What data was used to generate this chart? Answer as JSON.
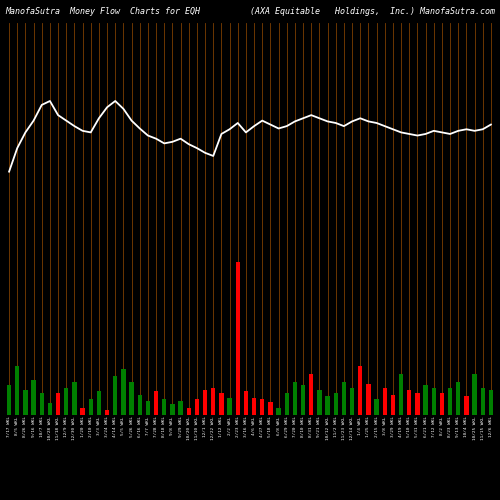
{
  "title_left": "ManofaSutra  Money Flow  Charts for EQH",
  "title_right": "(AXA Equitable   Holdings,  Inc.) ManofaSutra.com",
  "background_color": "#000000",
  "bar_colors": [
    "green",
    "green",
    "green",
    "green",
    "green",
    "green",
    "red",
    "green",
    "green",
    "red",
    "green",
    "green",
    "red",
    "green",
    "green",
    "green",
    "green",
    "green",
    "red",
    "green",
    "green",
    "green",
    "red",
    "red",
    "red",
    "red",
    "red",
    "green",
    "red",
    "red",
    "red",
    "red",
    "red",
    "green",
    "green",
    "green",
    "green",
    "red",
    "green",
    "green",
    "green",
    "green",
    "green",
    "red",
    "red",
    "green",
    "red",
    "red",
    "green",
    "red",
    "red",
    "green",
    "green",
    "red",
    "green",
    "green",
    "red",
    "green",
    "green",
    "green"
  ],
  "bar_heights": [
    38,
    62,
    32,
    44,
    28,
    15,
    28,
    35,
    42,
    9,
    20,
    30,
    6,
    50,
    58,
    42,
    25,
    18,
    30,
    20,
    14,
    18,
    9,
    20,
    32,
    35,
    28,
    22,
    195,
    30,
    22,
    20,
    16,
    9,
    28,
    42,
    38,
    52,
    32,
    24,
    28,
    42,
    35,
    62,
    40,
    20,
    35,
    25,
    52,
    32,
    28,
    38,
    35,
    28,
    35,
    42,
    24,
    52,
    35,
    32
  ],
  "line_values": [
    310,
    340,
    360,
    375,
    395,
    400,
    382,
    375,
    368,
    362,
    360,
    378,
    392,
    400,
    390,
    375,
    365,
    356,
    352,
    346,
    348,
    352,
    345,
    340,
    334,
    330,
    358,
    364,
    372,
    360,
    368,
    375,
    370,
    365,
    368,
    374,
    378,
    382,
    378,
    374,
    372,
    368,
    374,
    378,
    374,
    372,
    368,
    364,
    360,
    358,
    356,
    358,
    362,
    360,
    358,
    362,
    364,
    362,
    364,
    370
  ],
  "tick_labels": [
    "7/17 WKL",
    "8/5 WKL",
    "8/26 WKL",
    "9/16 WKL",
    "10/7 WKL",
    "10/28 WKL",
    "11/18 WKL",
    "12/9 WKL",
    "12/30 WKL",
    "1/20 WKL",
    "2/10 WKL",
    "3/3 WKL",
    "3/24 WKL",
    "4/14 WKL",
    "5/5 WKL",
    "5/26 WKL",
    "6/16 WKL",
    "7/7 WKL",
    "7/28 WKL",
    "8/18 WKL",
    "9/8 WKL",
    "9/29 WKL",
    "10/20 WKL",
    "11/10 WKL",
    "12/1 WKL",
    "12/22 WKL",
    "1/12 WKL",
    "2/2 WKL",
    "2/23 WKL",
    "3/16 WKL",
    "4/6 WKL",
    "4/27 WKL",
    "5/18 WKL",
    "6/8 WKL",
    "6/29 WKL",
    "7/20 WKL",
    "8/10 WKL",
    "8/31 WKL",
    "9/21 WKL",
    "10/12 WKL",
    "11/2 WKL",
    "11/23 WKL",
    "12/14 WKL",
    "1/4 WKL",
    "1/25 WKL",
    "2/15 WKL",
    "3/8 WKL",
    "3/29 WKL",
    "4/19 WKL",
    "5/10 WKL",
    "5/31 WKL",
    "6/21 WKL",
    "7/12 WKL",
    "8/2 WKL",
    "8/23 WKL",
    "9/13 WKL",
    "10/4 WKL",
    "10/25 WKL",
    "11/15 WKL",
    "12/6 WKL"
  ],
  "n_bars": 60,
  "vline_color": "#8B4500",
  "line_color": "#ffffff",
  "title_color": "#ffffff",
  "title_fontsize": 6.0,
  "bar_width": 0.55,
  "ylim_max": 500
}
